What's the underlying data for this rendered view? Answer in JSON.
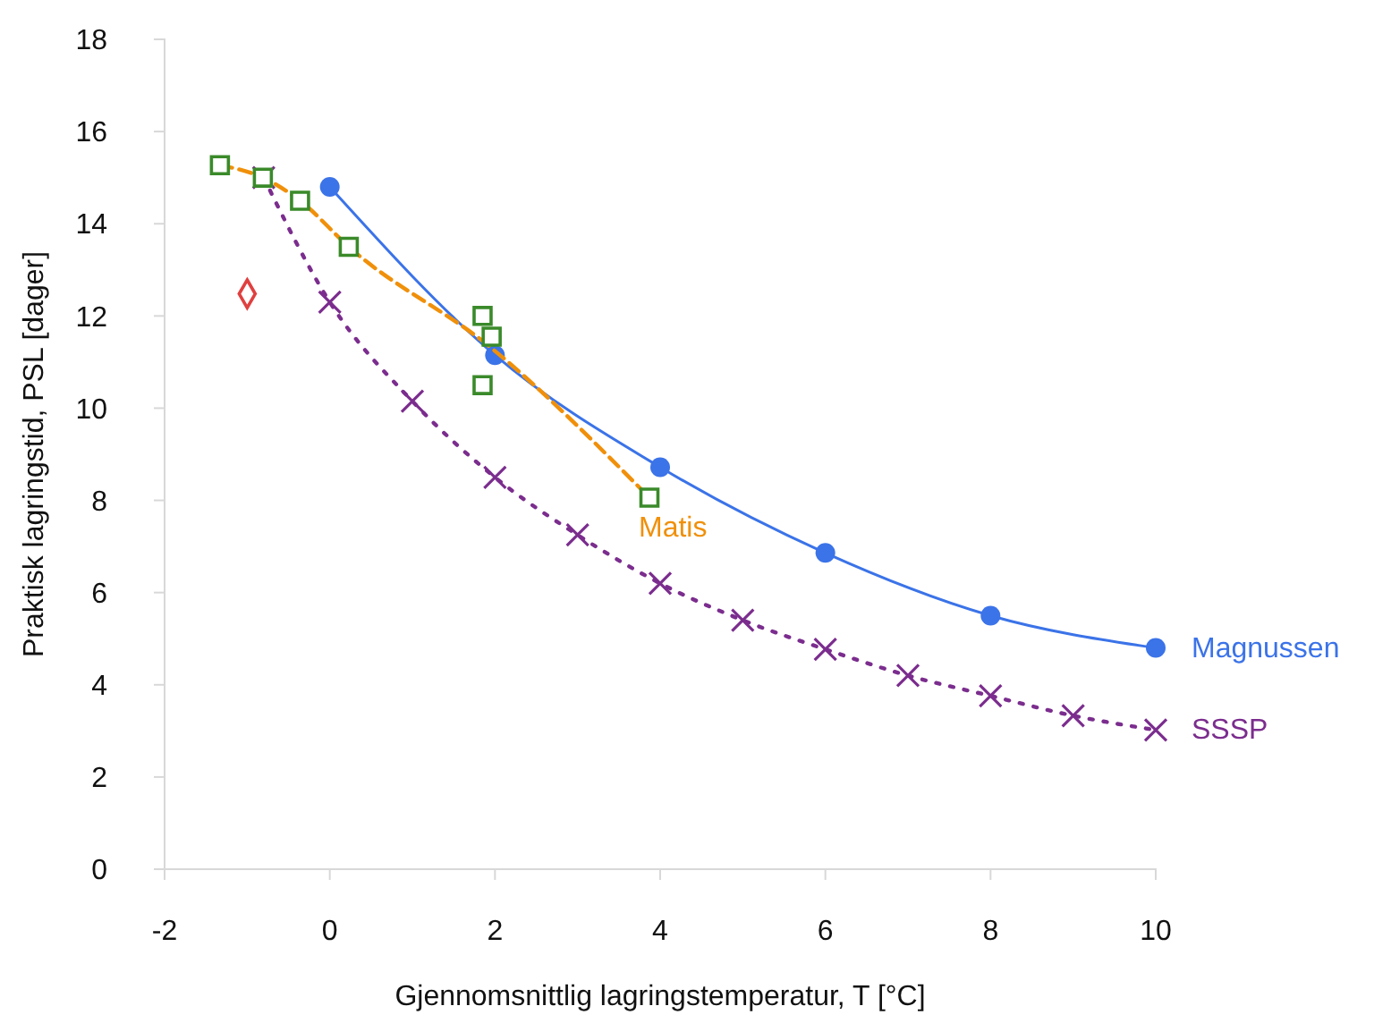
{
  "chart_data": {
    "type": "line",
    "xlabel": "Gjennomsnittlig lagringstemperatur, T [°C]",
    "ylabel": "Praktisk lagringstid, PSL [dager]",
    "xlim": [
      -2,
      10
    ],
    "ylim": [
      0,
      18
    ],
    "xticks": [
      -2,
      0,
      2,
      4,
      6,
      8,
      10
    ],
    "yticks": [
      0,
      2,
      4,
      6,
      8,
      10,
      12,
      14,
      16,
      18
    ],
    "grid": false,
    "series": [
      {
        "name": "Magnussen",
        "color": "#3b73e8",
        "marker": "circle",
        "line_style": "solid",
        "x": [
          0,
          2,
          4,
          6,
          8,
          10
        ],
        "values": [
          14.8,
          11.15,
          8.72,
          6.86,
          5.5,
          4.8
        ]
      },
      {
        "name": "SSSP",
        "color": "#7b2d8e",
        "marker": "cross",
        "line_style": "dotted",
        "x": [
          -0.8,
          0,
          1,
          2,
          3,
          4,
          5,
          6,
          7,
          8,
          9,
          10
        ],
        "values": [
          15.0,
          12.3,
          10.15,
          8.5,
          7.25,
          6.2,
          5.4,
          4.77,
          4.2,
          3.76,
          3.33,
          3.02
        ]
      },
      {
        "name": "Matis",
        "color": "#f0900a",
        "marker": "none",
        "line_style": "dashed",
        "x": [
          -1.33,
          -0.81,
          -0.36,
          0.23,
          1.96,
          3.87
        ],
        "values": [
          15.27,
          15.0,
          14.5,
          13.5,
          11.3,
          8.06
        ]
      },
      {
        "type": "scatter",
        "color": "#3a8a2a",
        "marker": "square",
        "x": [
          -1.33,
          -0.81,
          -0.36,
          0.23,
          1.85,
          1.96,
          1.85,
          3.87
        ],
        "values": [
          15.27,
          15.0,
          14.5,
          13.5,
          12.0,
          11.55,
          10.5,
          8.06
        ]
      },
      {
        "type": "scatter",
        "color": "#e04040",
        "marker": "diamond",
        "x": [
          -1.0
        ],
        "values": [
          12.48
        ]
      }
    ]
  }
}
